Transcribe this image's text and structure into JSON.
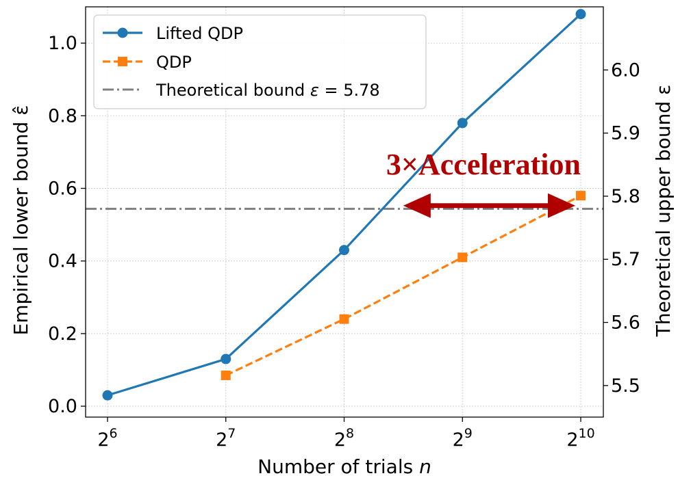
{
  "chart_data": {
    "type": "line",
    "title": "",
    "xlabel": "Number of trials n",
    "ylabel": "Empirical lower bound ε̂",
    "ylabel_right": "Theoretical upper bound ε",
    "x_scale": "log2",
    "x": [
      64,
      128,
      256,
      512,
      1024
    ],
    "x_ticks": [
      {
        "base": "2",
        "exp": "6"
      },
      {
        "base": "2",
        "exp": "7"
      },
      {
        "base": "2",
        "exp": "8"
      },
      {
        "base": "2",
        "exp": "9"
      },
      {
        "base": "2",
        "exp": "10"
      }
    ],
    "ylim": [
      -0.03,
      1.1
    ],
    "yticks": [
      "0.0",
      "0.2",
      "0.4",
      "0.6",
      "0.8",
      "1.0"
    ],
    "ylim_right": [
      5.45,
      6.1
    ],
    "yticks_right": [
      "5.5",
      "5.6",
      "5.7",
      "5.8",
      "5.9",
      "6.0"
    ],
    "grid": true,
    "legend_position": "top-left",
    "series": [
      {
        "name": "Lifted QDP",
        "color": "#1f77b4",
        "marker": "circle",
        "linestyle": "solid",
        "x": [
          64,
          128,
          256,
          512,
          1024
        ],
        "values": [
          0.03,
          0.13,
          0.43,
          0.78,
          1.08
        ]
      },
      {
        "name": "QDP",
        "color": "#ff7f0e",
        "marker": "square",
        "linestyle": "dashed",
        "x": [
          128,
          256,
          512,
          1024
        ],
        "values": [
          0.085,
          0.24,
          0.41,
          0.58
        ]
      }
    ],
    "reference_line": {
      "label": "Theoretical bound",
      "value_text": "5.78",
      "value": 5.78,
      "axis": "right",
      "color": "#808080",
      "linestyle": "dashdot"
    },
    "annotation": {
      "text": "3×Acceleration",
      "color": "#b00000",
      "arrow_from_x": 362,
      "arrow_to_x": 1024,
      "arrow_y_right": 5.785
    }
  }
}
